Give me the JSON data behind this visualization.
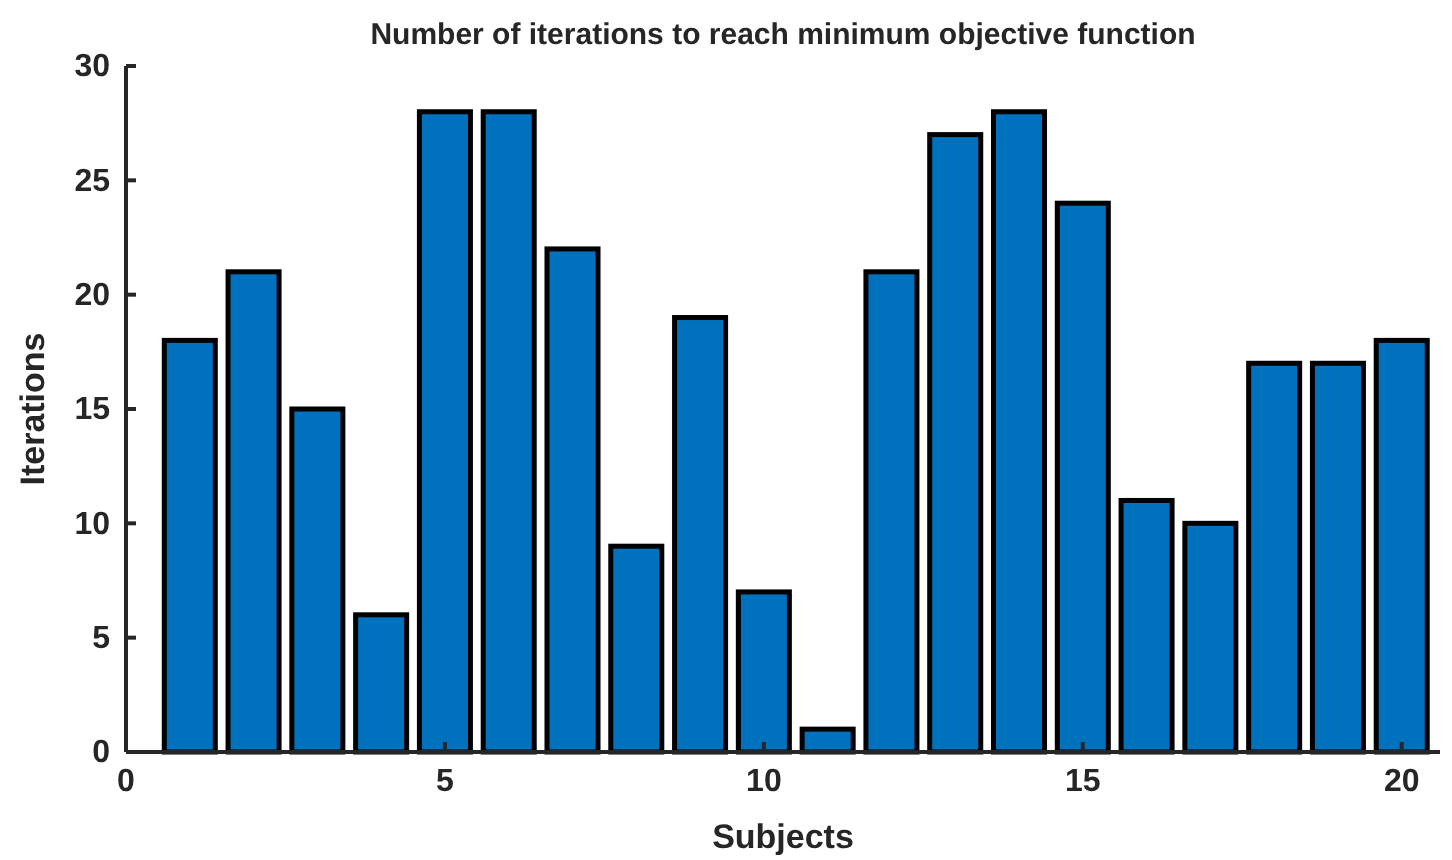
{
  "chart_data": {
    "type": "bar",
    "title": "Number of iterations to reach minimum objective function",
    "xlabel": "Subjects",
    "ylabel": "Iterations",
    "x": [
      1,
      2,
      3,
      4,
      5,
      6,
      7,
      8,
      9,
      10,
      11,
      12,
      13,
      14,
      15,
      16,
      17,
      18,
      19,
      20
    ],
    "values": [
      18,
      21,
      15,
      6,
      28,
      28,
      22,
      9,
      19,
      7,
      1,
      21,
      27,
      28,
      24,
      11,
      10,
      17,
      17,
      18
    ],
    "color": "#0072bd",
    "xlim": [
      0,
      20.6
    ],
    "xticks": [
      0,
      5,
      10,
      15,
      20
    ],
    "ylim": [
      0,
      30
    ],
    "yticks": [
      0,
      5,
      10,
      15,
      20,
      25,
      30
    ],
    "grid": false
  }
}
